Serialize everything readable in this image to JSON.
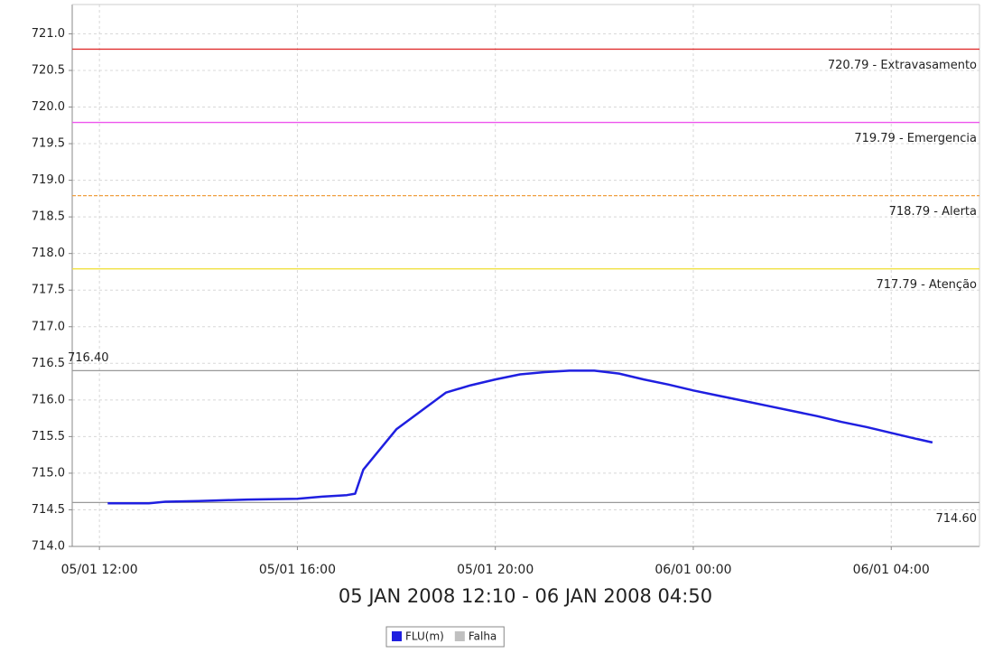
{
  "chart_data": {
    "type": "line",
    "xlabel": "05 JAN 2008 12:10 - 06 JAN 2008 04:50",
    "x": [
      "05/01 12:10",
      "05/01 13:00",
      "05/01 13:20",
      "05/01 14:00",
      "05/01 15:00",
      "05/01 16:00",
      "05/01 16:30",
      "05/01 17:00",
      "05/01 17:10",
      "05/01 17:20",
      "05/01 18:00",
      "05/01 18:30",
      "05/01 19:00",
      "05/01 19:30",
      "05/01 20:00",
      "05/01 20:30",
      "05/01 21:00",
      "05/01 21:30",
      "05/01 22:00",
      "05/01 22:30",
      "05/01 23:00",
      "05/01 23:30",
      "06/01 00:00",
      "06/01 00:30",
      "06/01 01:00",
      "06/01 01:30",
      "06/01 02:00",
      "06/01 02:30",
      "06/01 03:00",
      "06/01 03:30",
      "06/01 04:00",
      "06/01 04:30",
      "06/01 04:50"
    ],
    "series": [
      {
        "name": "FLU(m)",
        "color": "#1f1fe0",
        "values": [
          714.59,
          714.59,
          714.61,
          714.62,
          714.64,
          714.65,
          714.68,
          714.7,
          714.72,
          715.05,
          715.6,
          715.85,
          716.1,
          716.2,
          716.28,
          716.35,
          716.38,
          716.4,
          716.4,
          716.36,
          716.28,
          716.21,
          716.13,
          716.06,
          715.99,
          715.92,
          715.85,
          715.78,
          715.7,
          715.63,
          715.55,
          715.47,
          715.42
        ]
      }
    ],
    "legend_extra": [
      {
        "name": "Falha",
        "color": "#c0c0c0"
      }
    ],
    "reference_lines": [
      {
        "value": 720.79,
        "label": "720.79 - Extravasamento",
        "color": "#e03030",
        "style": "solid"
      },
      {
        "value": 719.79,
        "label": "719.79 - Emergencia",
        "color": "#ee55ee",
        "style": "solid"
      },
      {
        "value": 718.79,
        "label": "718.79 - Alerta",
        "color": "#f0a040",
        "style": "dashed"
      },
      {
        "value": 717.79,
        "label": "717.79 - Atenção",
        "color": "#f0e040",
        "style": "solid"
      },
      {
        "value": 716.4,
        "label": "716.40",
        "color": "#999999",
        "style": "solid"
      },
      {
        "value": 714.6,
        "label": "714.60",
        "color": "#999999",
        "style": "solid"
      }
    ],
    "xlim": [
      "05/01 11:27",
      "06/01 05:47"
    ],
    "xticks": [
      "05/01 12:00",
      "05/01 16:00",
      "05/01 20:00",
      "06/01 00:00",
      "06/01 04:00"
    ],
    "ylim": [
      714.0,
      721.4
    ],
    "yticks": [
      {
        "value": 714.0,
        "label": "714.0"
      },
      {
        "value": 714.5,
        "label": "714.5"
      },
      {
        "value": 715.0,
        "label": "715.0"
      },
      {
        "value": 715.5,
        "label": "715.5"
      },
      {
        "value": 716.0,
        "label": "716.0"
      },
      {
        "value": 716.5,
        "label": "716.5"
      },
      {
        "value": 717.0,
        "label": "717.0"
      },
      {
        "value": 717.5,
        "label": "717.5"
      },
      {
        "value": 718.0,
        "label": "718.0"
      },
      {
        "value": 718.5,
        "label": "718.5"
      },
      {
        "value": 719.0,
        "label": "719.0"
      },
      {
        "value": 719.5,
        "label": "719.5"
      },
      {
        "value": 720.0,
        "label": "720.0"
      },
      {
        "value": 720.5,
        "label": "720.5"
      },
      {
        "value": 721.0,
        "label": "721.0"
      }
    ],
    "grid": true
  }
}
